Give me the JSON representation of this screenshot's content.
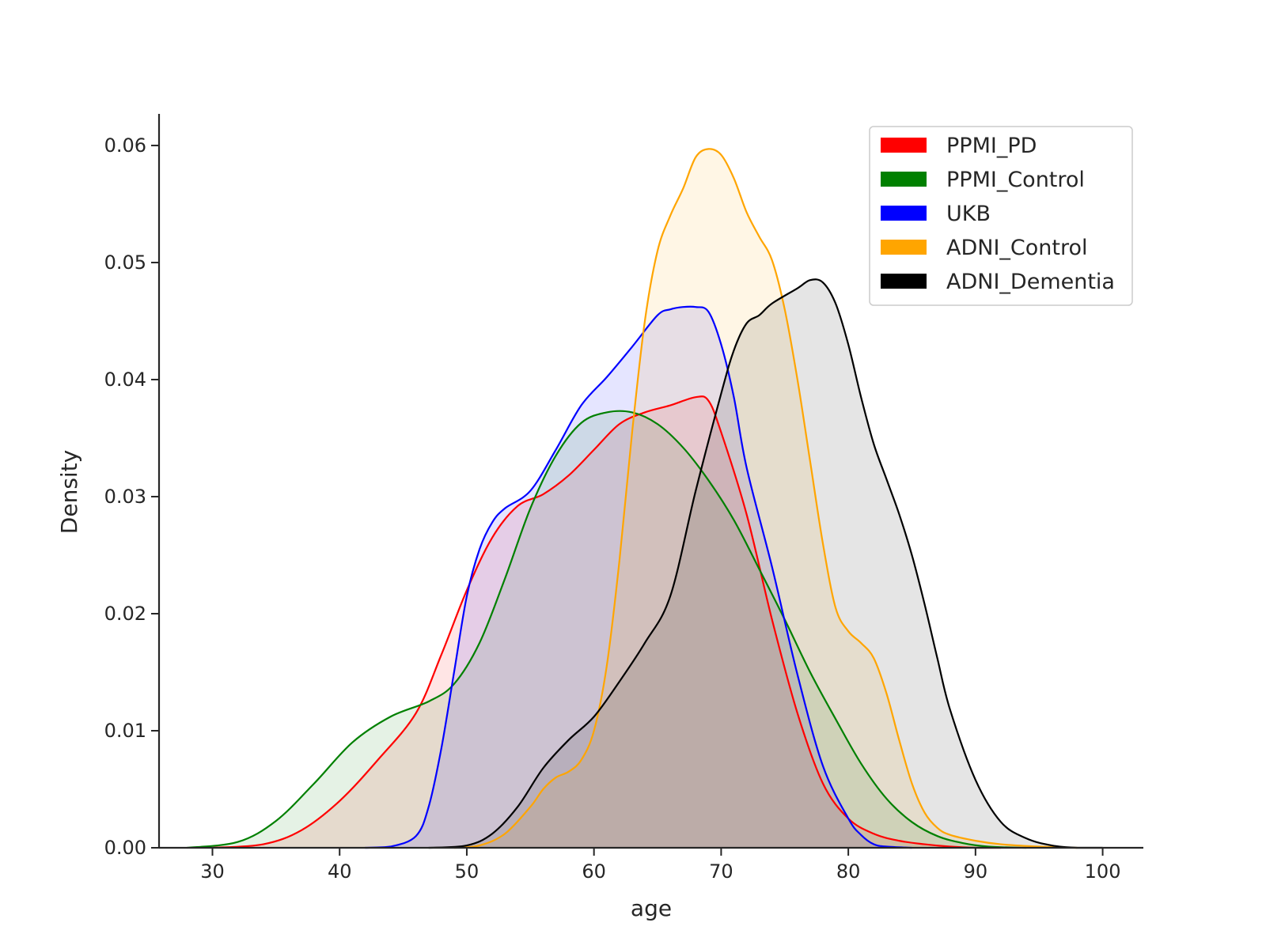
{
  "chart_data": {
    "type": "area",
    "title": "",
    "xlabel": "age",
    "ylabel": "Density",
    "xlim": [
      25.8,
      103.2
    ],
    "ylim": [
      0,
      0.0627
    ],
    "x_ticks": [
      30,
      40,
      50,
      60,
      70,
      80,
      90,
      100
    ],
    "y_ticks": [
      0.0,
      0.01,
      0.02,
      0.03,
      0.04,
      0.05,
      0.06
    ],
    "legend_position": "top-right",
    "series": [
      {
        "name": "PPMI_PD",
        "color": "#ff0000",
        "fill_opacity": 0.1,
        "x": [
          30,
          34,
          37,
          40,
          43,
          46,
          48,
          50,
          52,
          54,
          56,
          58,
          60,
          62,
          64,
          66,
          68,
          69,
          70,
          72,
          74,
          76,
          78,
          80,
          82,
          84,
          86,
          88,
          90,
          92
        ],
        "y": [
          0.0,
          0.0003,
          0.0015,
          0.004,
          0.0075,
          0.0115,
          0.0165,
          0.022,
          0.0265,
          0.0292,
          0.0302,
          0.0318,
          0.034,
          0.0362,
          0.0372,
          0.0378,
          0.0385,
          0.0382,
          0.0355,
          0.0285,
          0.0195,
          0.0115,
          0.0055,
          0.0025,
          0.0012,
          0.0006,
          0.0003,
          0.0001,
          0.0,
          0.0
        ]
      },
      {
        "name": "PPMI_Control",
        "color": "#008000",
        "fill_opacity": 0.1,
        "x": [
          28,
          32,
          35,
          38,
          41,
          44,
          47,
          49,
          51,
          53,
          55,
          57,
          59,
          61,
          63,
          65,
          67,
          69,
          71,
          73,
          75,
          77,
          79,
          81,
          83,
          85,
          87,
          89,
          91,
          94
        ],
        "y": [
          0.0,
          0.0005,
          0.0023,
          0.0055,
          0.009,
          0.0112,
          0.0125,
          0.014,
          0.0175,
          0.023,
          0.029,
          0.0335,
          0.0363,
          0.0372,
          0.0372,
          0.0362,
          0.0342,
          0.0314,
          0.028,
          0.0238,
          0.0195,
          0.015,
          0.011,
          0.0072,
          0.0042,
          0.0022,
          0.001,
          0.0004,
          0.0001,
          0.0
        ]
      },
      {
        "name": "UKB",
        "color": "#0000ff",
        "fill_opacity": 0.1,
        "x": [
          42,
          44,
          46,
          47,
          48,
          49,
          50,
          51,
          52,
          53,
          55,
          57,
          59,
          61,
          63,
          65,
          66,
          67,
          68,
          69,
          70,
          71,
          72,
          74,
          76,
          78,
          80,
          81,
          82,
          83,
          85
        ],
        "y": [
          0.0,
          0.0001,
          0.001,
          0.0035,
          0.0085,
          0.015,
          0.0215,
          0.0255,
          0.0278,
          0.029,
          0.0305,
          0.034,
          0.0378,
          0.0402,
          0.0428,
          0.0455,
          0.046,
          0.0462,
          0.0462,
          0.0458,
          0.043,
          0.0385,
          0.0325,
          0.024,
          0.0148,
          0.007,
          0.0025,
          0.0011,
          0.0003,
          0.0001,
          0.0
        ]
      },
      {
        "name": "ADNI_Control",
        "color": "#ffa500",
        "fill_opacity": 0.1,
        "x": [
          49,
          51,
          53,
          55,
          56,
          57,
          58,
          59,
          60,
          61,
          62,
          63,
          64,
          65,
          66,
          67,
          68,
          69,
          70,
          71,
          72,
          73,
          74,
          75,
          76,
          77,
          78,
          79,
          80,
          81,
          82,
          83,
          84,
          85,
          86,
          87,
          88,
          90,
          92,
          95,
          98
        ],
        "y": [
          0.0,
          0.0002,
          0.0012,
          0.0035,
          0.005,
          0.006,
          0.0065,
          0.0075,
          0.01,
          0.0155,
          0.0245,
          0.0355,
          0.045,
          0.051,
          0.054,
          0.0563,
          0.059,
          0.0597,
          0.0592,
          0.0572,
          0.0543,
          0.0522,
          0.0502,
          0.046,
          0.04,
          0.033,
          0.026,
          0.0205,
          0.0185,
          0.0175,
          0.0162,
          0.0132,
          0.0092,
          0.0055,
          0.003,
          0.0017,
          0.0011,
          0.0006,
          0.0003,
          0.0001,
          0.0
        ]
      },
      {
        "name": "ADNI_Dementia",
        "color": "#000000",
        "fill_opacity": 0.1,
        "x": [
          47,
          50,
          52,
          54,
          56,
          58,
          60,
          62,
          64,
          66,
          68,
          70,
          71,
          72,
          73,
          74,
          76,
          77,
          78,
          79,
          80,
          81,
          82,
          83,
          84,
          85,
          86,
          87,
          88,
          90,
          92,
          94,
          96,
          98,
          100
        ],
        "y": [
          0.0,
          0.0002,
          0.0012,
          0.0035,
          0.0068,
          0.0092,
          0.0112,
          0.0142,
          0.0175,
          0.0215,
          0.0305,
          0.0388,
          0.0425,
          0.0448,
          0.0455,
          0.0465,
          0.0478,
          0.0485,
          0.0483,
          0.0465,
          0.043,
          0.0385,
          0.0345,
          0.0315,
          0.0285,
          0.025,
          0.0208,
          0.0162,
          0.0118,
          0.0058,
          0.0022,
          0.0008,
          0.0002,
          0.0,
          0.0
        ]
      }
    ]
  }
}
